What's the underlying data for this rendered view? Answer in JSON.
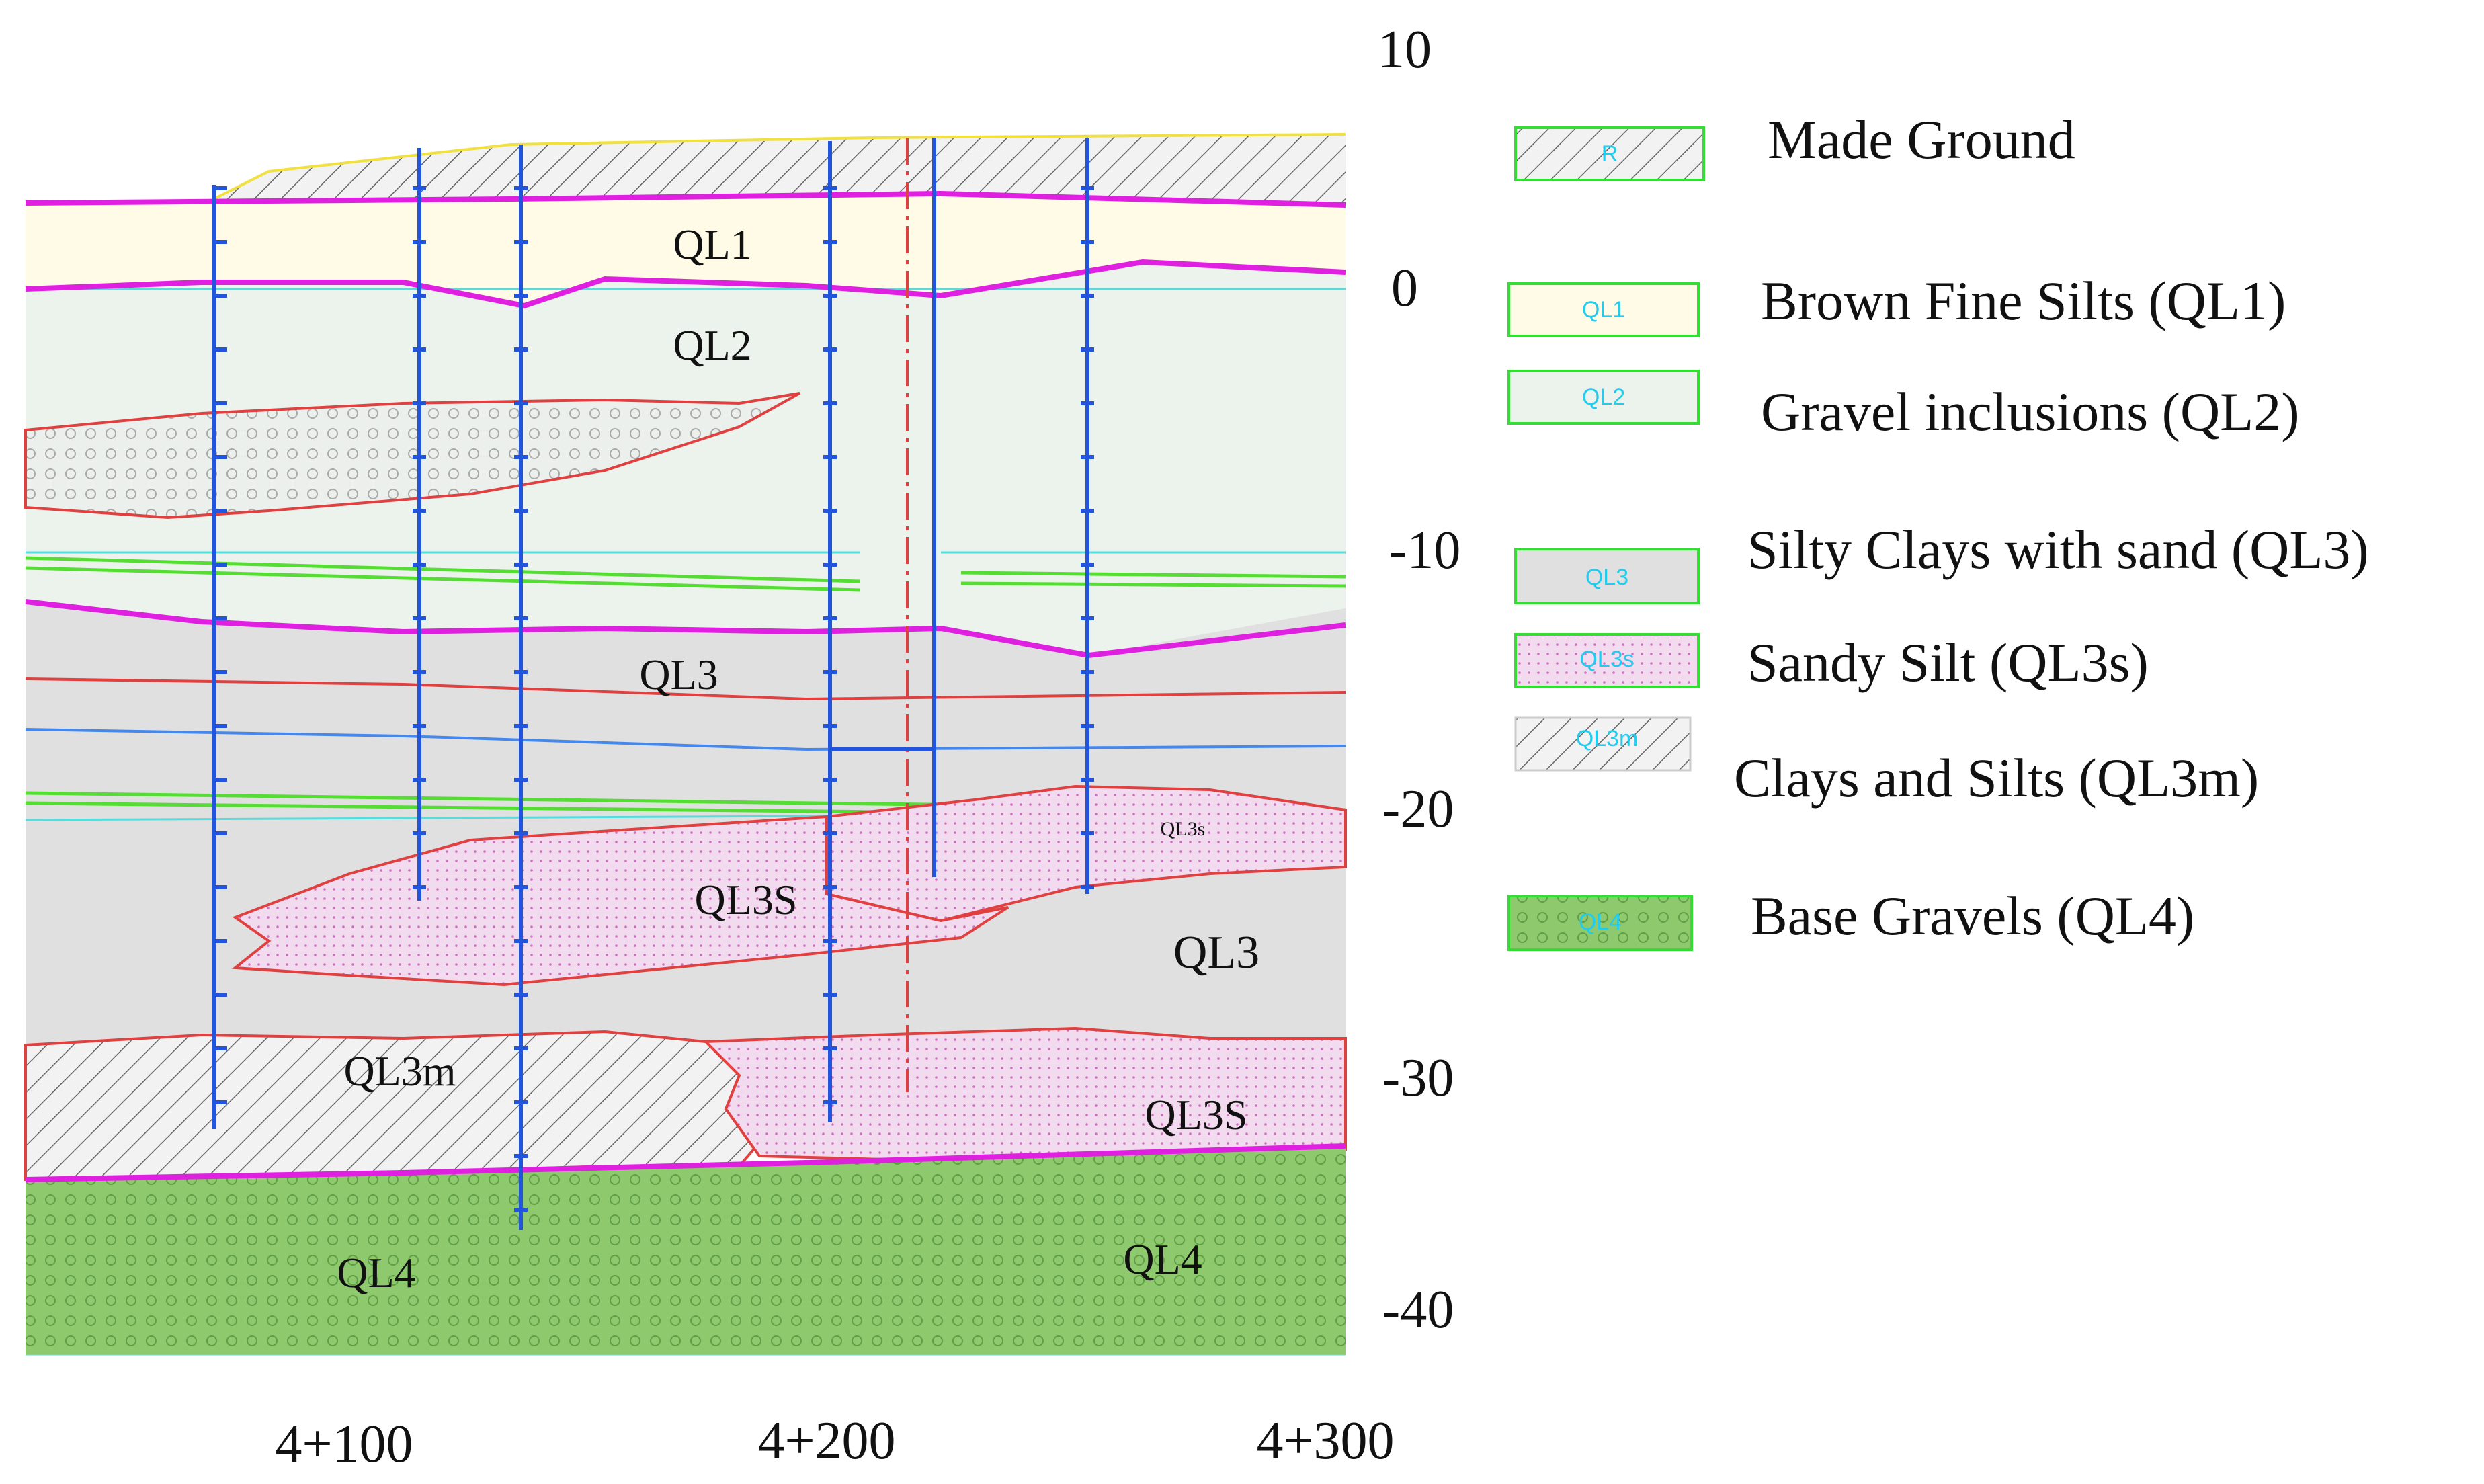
{
  "diagram": {
    "type": "geological cross-section",
    "elevation_axis": {
      "ticks": [
        "10",
        "0",
        "-10",
        "-20",
        "-30",
        "-40"
      ],
      "range": [
        -40,
        10
      ]
    },
    "chainage_axis": {
      "ticks": [
        "4+100",
        "4+200",
        "4+300"
      ]
    },
    "layer_labels": {
      "ql1": "QL1",
      "ql2": "QL2",
      "ql3_upper": "QL3",
      "ql3s_small": "QL3s",
      "ql3s_center": "QL3S",
      "ql3_right": "QL3",
      "ql3m": "QL3m",
      "ql3s_lower": "QL3S",
      "ql4_left": "QL4",
      "ql4_right": "QL4"
    }
  },
  "legend": {
    "items": [
      {
        "code": "R",
        "label": "Made Ground"
      },
      {
        "code": "QL1",
        "label": "Brown Fine Silts (QL1)"
      },
      {
        "code": "QL2",
        "label": "Gravel inclusions (QL2)"
      },
      {
        "code": "QL3",
        "label": "Silty Clays with sand (QL3)"
      },
      {
        "code": "QL3s",
        "label": "Sandy Silt (QL3s)"
      },
      {
        "code": "QL3m",
        "label": "Clays and Silts (QL3m)"
      },
      {
        "code": "QL4",
        "label": "Base Gravels (QL4)"
      }
    ]
  },
  "colors": {
    "made_ground_bg": "#f4f4f4",
    "ql1_fill": "#fffbe6",
    "ql2_fill": "#ecf3ec",
    "ql3_fill": "#e0e0e0",
    "ql3s_fill": "#f2dbee",
    "ql4_fill": "#8fc96e",
    "boundary_magenta": "#e020e0",
    "boundary_red": "#e04040",
    "borehole_blue": "#2255dd",
    "swatch_border": "#33dd33",
    "swatch_text": "#22ccee"
  }
}
